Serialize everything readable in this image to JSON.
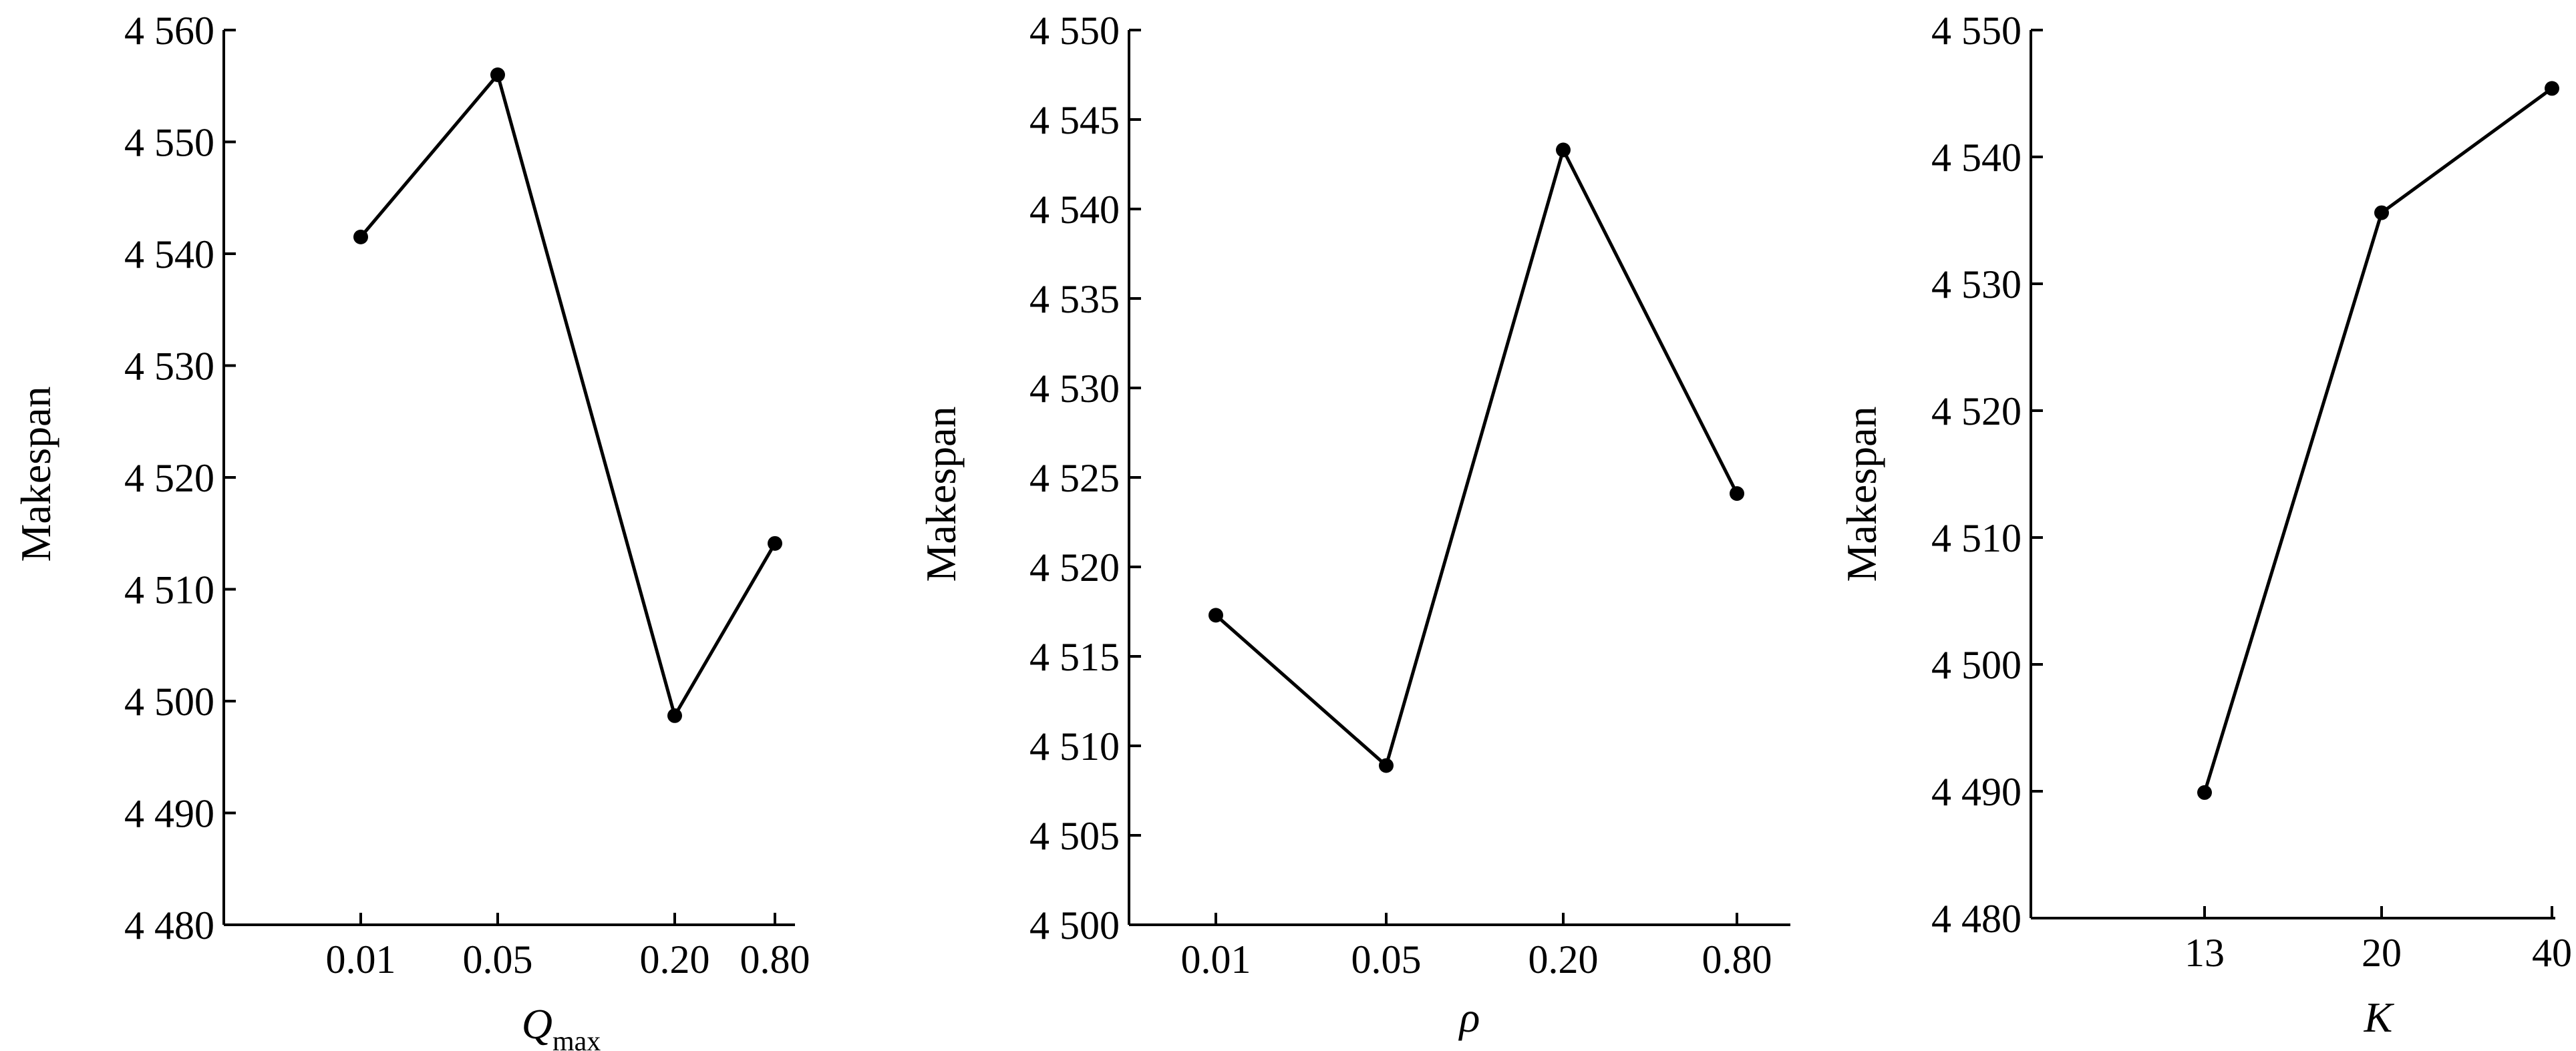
{
  "chart_data": [
    {
      "type": "line",
      "ylabel": "Makespan",
      "xlabel": {
        "main": "Q",
        "sub": "max"
      },
      "categories": [
        "0.01",
        "0.05",
        "0.20",
        "0.80"
      ],
      "series": [
        {
          "values": [
            4541.5,
            4556,
            4498.7,
            4514.1
          ]
        }
      ],
      "ylim": [
        4480,
        4560
      ],
      "yticks": [
        4480,
        4490,
        4500,
        4510,
        4520,
        4530,
        4540,
        4550,
        4560
      ],
      "ytick_labels": [
        "4 480",
        "4 490",
        "4 500",
        "4 510",
        "4 520",
        "4 530",
        "4 540",
        "4 550",
        "4 560"
      ],
      "grid": false
    },
    {
      "type": "line",
      "ylabel": "Makespan",
      "xlabel": {
        "main": "ρ",
        "sub": ""
      },
      "categories": [
        "0.01",
        "0.05",
        "0.20",
        "0.80"
      ],
      "series": [
        {
          "values": [
            4517.3,
            4508.9,
            4543.3,
            4524.1
          ]
        }
      ],
      "ylim": [
        4500,
        4550
      ],
      "yticks": [
        4500,
        4505,
        4510,
        4515,
        4520,
        4525,
        4530,
        4535,
        4540,
        4545,
        4550
      ],
      "ytick_labels": [
        "4 500",
        "4 505",
        "4 510",
        "4 515",
        "4 520",
        "4 525",
        "4 530",
        "4 535",
        "4 540",
        "4 545",
        "4 550"
      ],
      "grid": false
    },
    {
      "type": "line",
      "ylabel": "Makespan",
      "xlabel": {
        "main": "K",
        "sub": ""
      },
      "categories": [
        "13",
        "20",
        "40"
      ],
      "series": [
        {
          "values": [
            4489.9,
            4535.6,
            4545.4
          ]
        }
      ],
      "ylim": [
        4480,
        4550
      ],
      "yticks": [
        4480,
        4490,
        4500,
        4510,
        4520,
        4530,
        4540,
        4550
      ],
      "ytick_labels": [
        "4 480",
        "4 490",
        "4 500",
        "4 510",
        "4 520",
        "4 530",
        "4 540",
        "4 550"
      ],
      "grid": false
    }
  ]
}
